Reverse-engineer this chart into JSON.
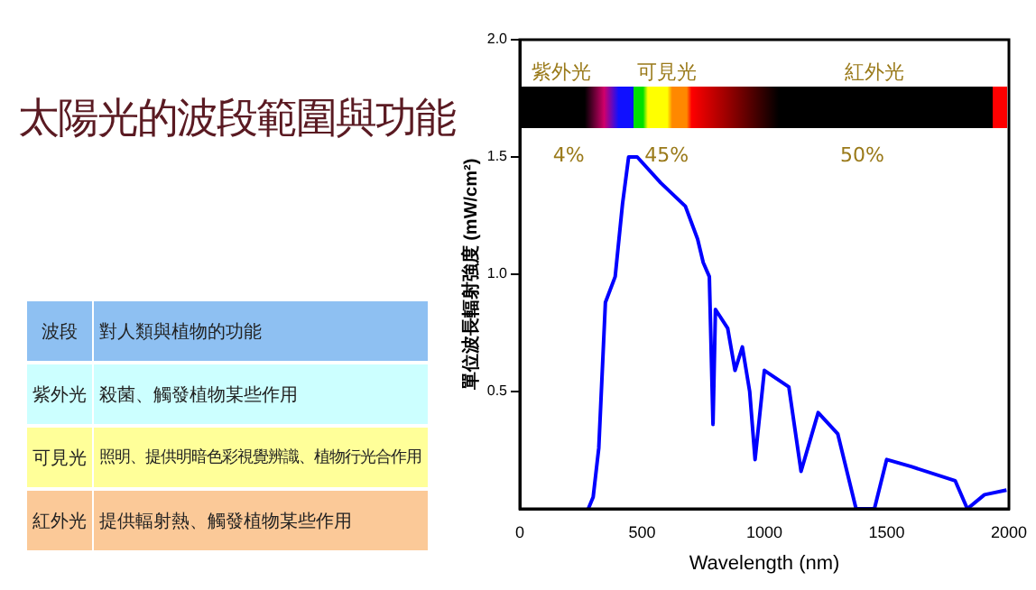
{
  "chart_data": {
    "type": "line",
    "title": "太陽光的波段範圍與功能",
    "xlabel": "Wavelength (nm)",
    "ylabel": "單位波長輻射強度 (mW/cm²)",
    "x": [
      280,
      300,
      323,
      350,
      390,
      420,
      445,
      480,
      576,
      677,
      727,
      750,
      775,
      790,
      800,
      850,
      880,
      910,
      940,
      962,
      1000,
      1100,
      1150,
      1220,
      1300,
      1375,
      1450,
      1500,
      1600,
      1780,
      1830,
      1900,
      1990
    ],
    "series": [
      {
        "color": "#0000ff",
        "values": [
          0,
          0.05,
          0.26,
          0.88,
          0.99,
          1.3,
          1.5,
          1.5,
          1.39,
          1.29,
          1.15,
          1.05,
          0.99,
          0.36,
          0.85,
          0.77,
          0.59,
          0.69,
          0.5,
          0.21,
          0.59,
          0.52,
          0.16,
          0.41,
          0.32,
          0,
          0,
          0.21,
          0.18,
          0.12,
          0,
          0.06,
          0.08
        ]
      }
    ],
    "xlim": [
      0,
      2000
    ],
    "xticks": [
      0,
      500,
      1000,
      1500,
      2000
    ],
    "ylim": [
      0,
      2
    ],
    "yticks": [
      0.5,
      {
        "value": 1,
        "label": "1.0"
      },
      1.5,
      {
        "value": 2,
        "label": "2.0"
      }
    ],
    "grid": false,
    "legend": false,
    "marker": "none",
    "line_style": "solid",
    "annotations": [
      "波段",
      "對人類與植物的功能",
      "紫外光",
      "殺菌、觸發植物某些作用",
      "可見光",
      "照明、提供明暗色彩視覺辨識、植物行光合作用",
      "紅外光",
      "提供輻射熱、觸發植物某些作用",
      "紫外光",
      "可見光",
      "紅外光",
      "4%",
      "45%",
      "50%"
    ]
  }
}
